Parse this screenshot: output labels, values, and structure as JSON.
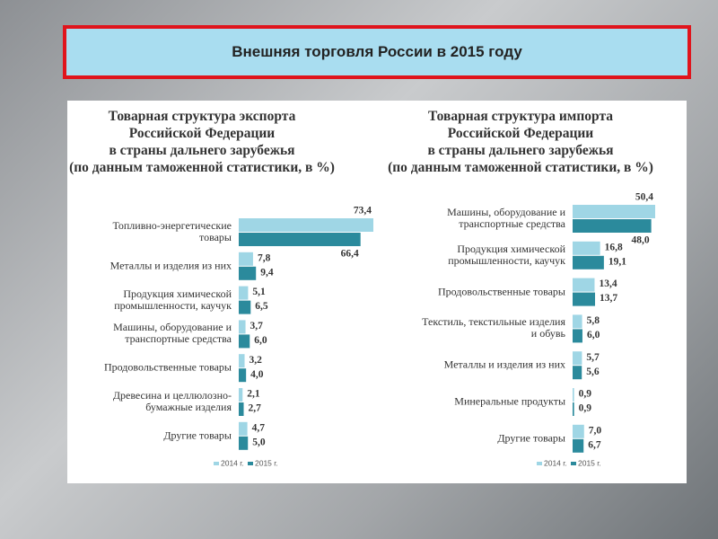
{
  "header": {
    "title": "Внешняя торговля России в 2015 году"
  },
  "chart_data": [
    {
      "type": "hbar",
      "title": "Товарная структура экспорта\nРоссийской Федерации\nв страны дальнего зарубежья\n(по данным таможенной статистики, в %)",
      "categories": [
        "Топливно-энергетические товары",
        "Металлы и изделия из них",
        "Продукция химической промышленности, каучук",
        "Машины, оборудование и транспортные средства",
        "Продовольственные товары",
        "Древесина и целлюлозно-бумажные изделия",
        "Другие товары"
      ],
      "series": [
        {
          "name": "2014 г.",
          "color": "#9fd6e5",
          "values": [
            73.4,
            7.8,
            5.1,
            3.7,
            3.2,
            2.1,
            4.7
          ],
          "value_labels": [
            "73,4",
            "7,8",
            "5,1",
            "3,7",
            "3,2",
            "2,1",
            "4,7"
          ]
        },
        {
          "name": "2015 г.",
          "color": "#2b8a9c",
          "values": [
            66.4,
            9.4,
            6.5,
            6.0,
            4.0,
            2.7,
            5.0
          ],
          "value_labels": [
            "66,4",
            "9,4",
            "6,5",
            "6,0",
            "4,0",
            "2,7",
            "5,0"
          ]
        }
      ]
    },
    {
      "type": "hbar",
      "title": "Товарная структура импорта\nРоссийской Федерации\nв страны дальнего зарубежья\n(по данным таможенной статистики, в %)",
      "categories": [
        "Машины, оборудование и транспортные средства",
        "Продукция химической промышленности, каучук",
        "Продовольственные товары",
        "Текстиль, текстильные изделия и обувь",
        "Металлы и изделия из них",
        "Минеральные продукты",
        "Другие товары"
      ],
      "series": [
        {
          "name": "2014 г.",
          "color": "#9fd6e5",
          "values": [
            50.4,
            16.8,
            13.4,
            5.8,
            5.7,
            0.9,
            7.0
          ],
          "value_labels": [
            "50,4",
            "16,8",
            "13,4",
            "5,8",
            "5,7",
            "0,9",
            "7,0"
          ]
        },
        {
          "name": "2015 г.",
          "color": "#2b8a9c",
          "values": [
            48.0,
            19.1,
            13.7,
            6.0,
            5.6,
            0.9,
            6.7
          ],
          "value_labels": [
            "48,0",
            "19,1",
            "13,7",
            "6,0",
            "5,6",
            "0,9",
            "6,7"
          ]
        }
      ]
    }
  ]
}
